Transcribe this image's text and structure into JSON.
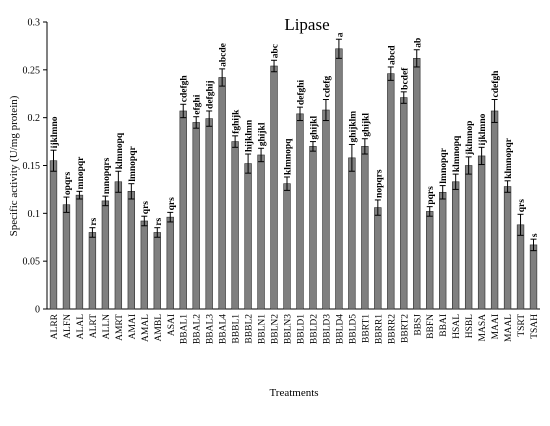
{
  "chart_data": {
    "type": "bar",
    "title": "Lipase",
    "xlabel": "Treatments",
    "ylabel": "Specific activity (U/mg protein)",
    "ylim": [
      0,
      0.3
    ],
    "yticks": [
      "0",
      "0.05",
      "0.1",
      "0.15",
      "0.2",
      "0.25",
      "0.3"
    ],
    "grid": false,
    "bar_color": "#7f7f7f",
    "categories": [
      "ALRR",
      "ALFN",
      "ALAL",
      "ALRT",
      "ALLN",
      "AMRT",
      "AMAI",
      "AMAL",
      "AMBL",
      "ASAI",
      "BBAL1",
      "BBAL2",
      "BBAL3",
      "BBAL4",
      "BBBL1",
      "BBBL2",
      "BBLN1",
      "BBLN2",
      "BBLN3",
      "BBLD1",
      "BBLD2",
      "BBLD3",
      "BBLD4",
      "BBLD5",
      "BBRT1",
      "BBRR1",
      "BBRR2",
      "BBRT2",
      "BBSJ",
      "BBFN",
      "BBAI",
      "HSAL",
      "HSBL",
      "MASA",
      "MAAI",
      "MAAL",
      "TSRT",
      "TSAH"
    ],
    "values": [
      0.155,
      0.109,
      0.119,
      0.08,
      0.113,
      0.133,
      0.123,
      0.092,
      0.08,
      0.096,
      0.207,
      0.195,
      0.199,
      0.242,
      0.175,
      0.152,
      0.161,
      0.254,
      0.131,
      0.204,
      0.17,
      0.208,
      0.272,
      0.158,
      0.17,
      0.106,
      0.246,
      0.221,
      0.262,
      0.102,
      0.122,
      0.133,
      0.15,
      0.16,
      0.207,
      0.128,
      0.088,
      0.067
    ],
    "errors": [
      0.011,
      0.008,
      0.004,
      0.005,
      0.005,
      0.011,
      0.008,
      0.005,
      0.005,
      0.005,
      0.007,
      0.006,
      0.008,
      0.009,
      0.006,
      0.01,
      0.007,
      0.006,
      0.007,
      0.007,
      0.005,
      0.011,
      0.01,
      0.014,
      0.008,
      0.008,
      0.007,
      0.006,
      0.009,
      0.005,
      0.007,
      0.008,
      0.009,
      0.009,
      0.012,
      0.006,
      0.011,
      0.006
    ],
    "significance": [
      "ijklmno",
      "opqrs",
      "mnopqr",
      "rs",
      "mnopqrs",
      "klmnopq",
      "lmnopqr",
      "qrs",
      "rs",
      "qrs",
      "cdefgh",
      "efghi",
      "defghij",
      "abcde",
      "fghijk",
      "hijklmn",
      "ghijkl",
      "abc",
      "klmnopq",
      "defghi",
      "ghijkl",
      "cdefg",
      "a",
      "ghijklm",
      "ghijkl",
      "nopqrs",
      "abcd",
      "bcdef",
      "ab",
      "pqrs",
      "lmnopqr",
      "klmnopq",
      "jklmnop",
      "ijklmno",
      "cdefgh",
      "klmnopqr",
      "qrs",
      "s"
    ]
  }
}
